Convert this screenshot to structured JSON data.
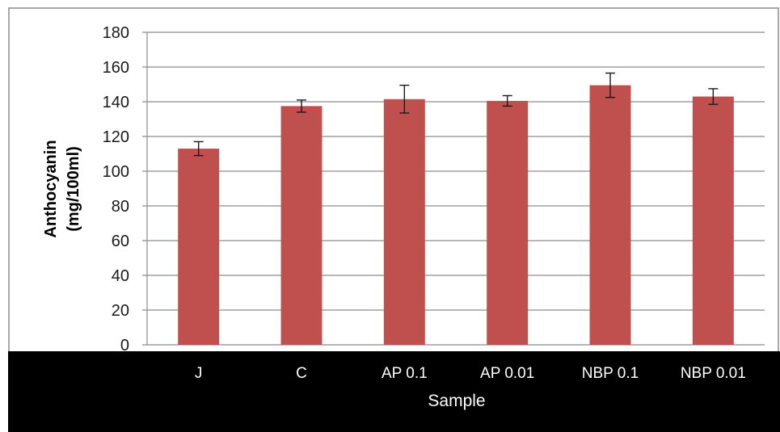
{
  "chart_data": {
    "type": "bar",
    "categories": [
      "J",
      "C",
      "AP 0.1",
      "AP 0.01",
      "NBP 0.1",
      "NBP 0.01"
    ],
    "series": [
      {
        "values": [
          113,
          137.5,
          141.5,
          140.5,
          149.5,
          143
        ],
        "error": [
          4,
          3.5,
          8,
          3,
          7,
          4.5
        ]
      }
    ],
    "ylim": [
      0,
      180
    ],
    "yticks": [
      0,
      20,
      40,
      60,
      80,
      100,
      120,
      140,
      160,
      180
    ],
    "xlabel": "Sample",
    "ylabel_lines": [
      "Anthocyanin",
      "(mg/100ml)"
    ],
    "grid": true,
    "legend": "none",
    "colors": {
      "bar": "#c0504d",
      "error_bar": "#1a1a1a",
      "grid": "#8c8c8c",
      "axis": "#8c8c8c",
      "footer_band": "#000000",
      "chart_border": "#8c8c8c"
    }
  }
}
